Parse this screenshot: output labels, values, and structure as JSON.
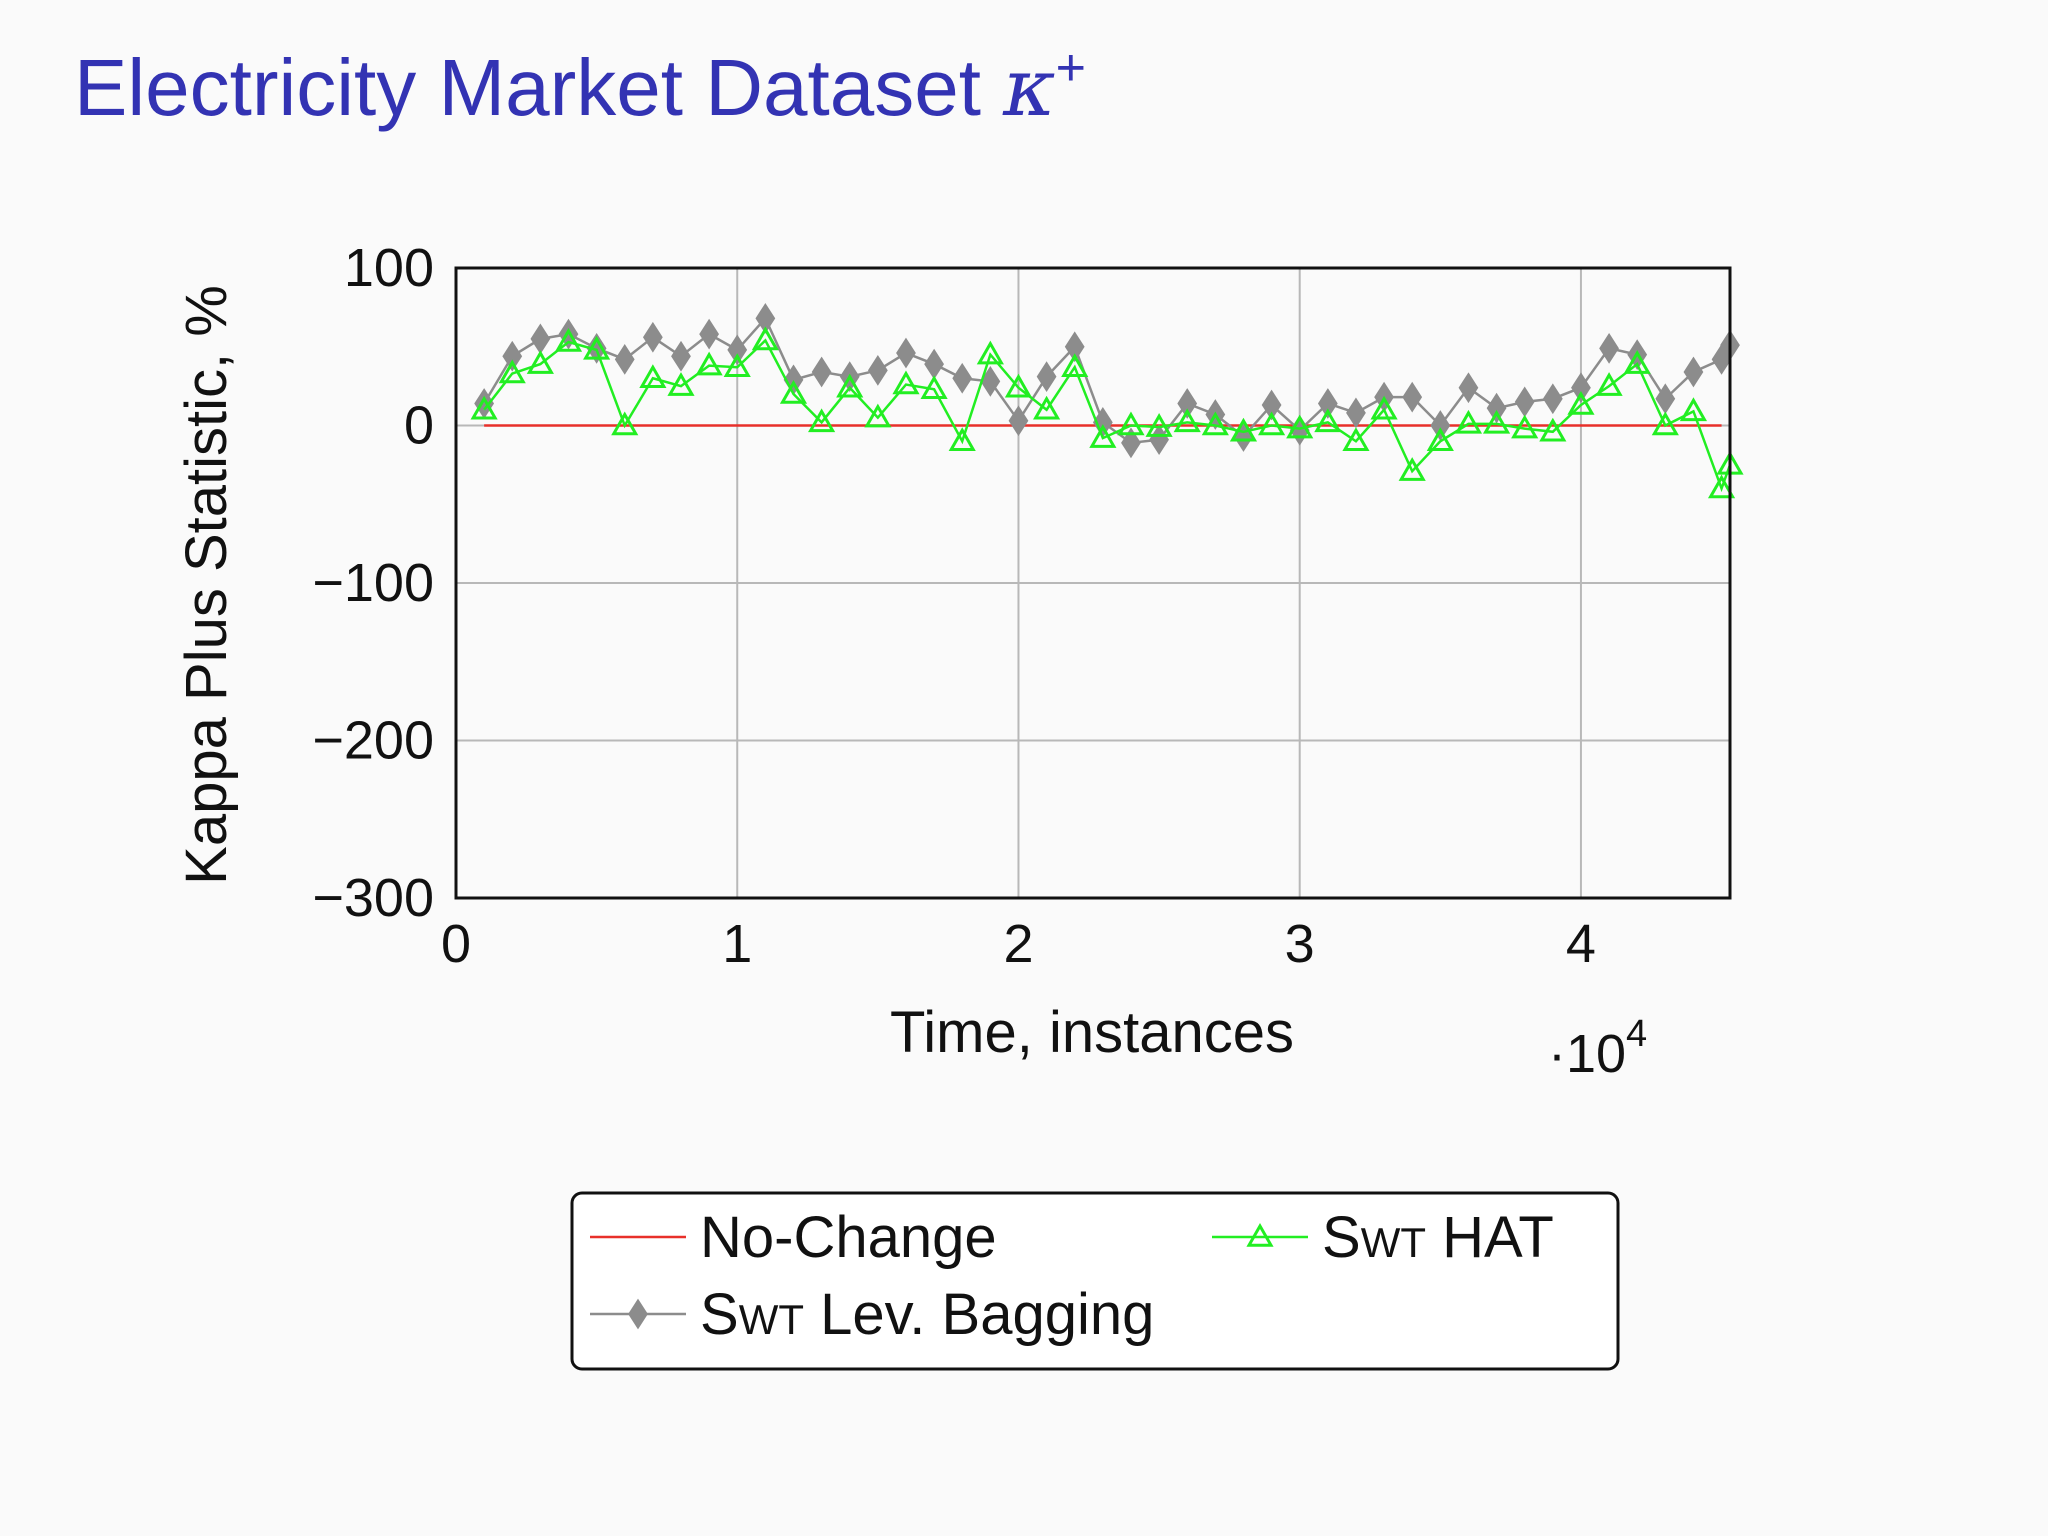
{
  "title": {
    "text": "Electricity Market Dataset",
    "symbol": "κ",
    "symbol_sup": "+"
  },
  "chart_data": {
    "type": "line",
    "xlabel": "Time, instances",
    "ylabel": "Kappa Plus Statistic, %",
    "x_multiplier_label": "·10",
    "x_multiplier_exp": "4",
    "xlim": [
      0,
      4.53
    ],
    "ylim": [
      -300,
      100
    ],
    "x_ticks": [
      0,
      1,
      2,
      3,
      4
    ],
    "y_ticks": [
      100,
      0,
      -100,
      -200,
      -300
    ],
    "y_tick_labels": [
      "100",
      "0",
      "−100",
      "−200",
      "−300"
    ],
    "grid": true,
    "legend_position": "bottom-center",
    "series": [
      {
        "name": "No-Change",
        "color": "#e8302a",
        "marker": "none",
        "x": [
          0.1,
          4.5
        ],
        "values": [
          0,
          0
        ]
      },
      {
        "name": "SWT HAT",
        "name_prefix": "S",
        "name_smallcaps": "WT",
        "name_suffix": " HAT",
        "color": "#22ee22",
        "marker": "triangle",
        "x": [
          0.1,
          0.2,
          0.3,
          0.4,
          0.5,
          0.6,
          0.7,
          0.8,
          0.9,
          1.0,
          1.1,
          1.2,
          1.3,
          1.4,
          1.5,
          1.6,
          1.7,
          1.8,
          1.9,
          2.0,
          2.1,
          2.2,
          2.3,
          2.4,
          2.5,
          2.6,
          2.7,
          2.8,
          2.9,
          3.0,
          3.1,
          3.2,
          3.3,
          3.4,
          3.5,
          3.6,
          3.7,
          3.8,
          3.9,
          4.0,
          4.1,
          4.2,
          4.3,
          4.4,
          4.5,
          4.53
        ],
        "values": [
          10,
          33,
          39,
          53,
          48,
          0,
          30,
          25,
          38,
          37,
          54,
          20,
          2,
          24,
          5,
          26,
          23,
          -10,
          45,
          24,
          10,
          37,
          -8,
          0,
          -1,
          2,
          0,
          -4,
          0,
          -2,
          2,
          -10,
          10,
          -29,
          -10,
          1,
          1,
          -2,
          -4,
          13,
          25,
          39,
          0,
          9,
          -40,
          -25
        ]
      },
      {
        "name": "SWT Lev. Bagging",
        "name_prefix": "S",
        "name_smallcaps": "WT",
        "name_suffix": " Lev. Bagging",
        "color": "#8c8c8c",
        "marker": "diamond",
        "x": [
          0.1,
          0.2,
          0.3,
          0.4,
          0.5,
          0.6,
          0.7,
          0.8,
          0.9,
          1.0,
          1.1,
          1.2,
          1.3,
          1.4,
          1.5,
          1.6,
          1.7,
          1.8,
          1.9,
          2.0,
          2.1,
          2.2,
          2.3,
          2.4,
          2.5,
          2.6,
          2.7,
          2.8,
          2.9,
          3.0,
          3.1,
          3.2,
          3.3,
          3.4,
          3.5,
          3.6,
          3.7,
          3.8,
          3.9,
          4.0,
          4.1,
          4.2,
          4.3,
          4.4,
          4.5,
          4.53
        ],
        "values": [
          14,
          44,
          55,
          58,
          49,
          42,
          56,
          44,
          58,
          48,
          68,
          29,
          34,
          31,
          35,
          46,
          39,
          30,
          28,
          3,
          31,
          50,
          2,
          -11,
          -9,
          14,
          7,
          -7,
          13,
          -3,
          14,
          8,
          18,
          18,
          0,
          24,
          11,
          15,
          17,
          24,
          49,
          45,
          17,
          34,
          42,
          51
        ]
      }
    ]
  }
}
